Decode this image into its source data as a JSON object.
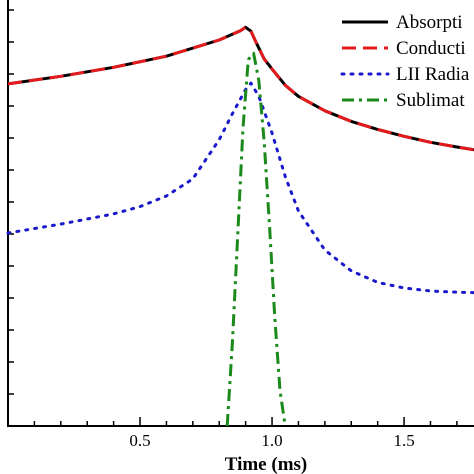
{
  "chart_data": {
    "type": "line",
    "title": "",
    "xlabel": "Time (ms)",
    "ylabel": "",
    "xlim": [
      0.0,
      1.78
    ],
    "ylim": [
      0,
      100
    ],
    "x_ticks": [
      0.5,
      1.0,
      1.5
    ],
    "x_tick_labels": [
      "0.5",
      "1.0",
      "1.5"
    ],
    "grid": false,
    "legend_position": "top-right",
    "series": [
      {
        "name": "Absorpti",
        "color": "#000000",
        "dash": "solid",
        "x": [
          0.0,
          0.2,
          0.4,
          0.6,
          0.8,
          0.88,
          0.9,
          0.92,
          0.94,
          0.97,
          1.0,
          1.05,
          1.1,
          1.2,
          1.3,
          1.4,
          1.5,
          1.6,
          1.7,
          1.78
        ],
        "y": [
          80.3,
          82.1,
          84.2,
          86.8,
          90.6,
          92.8,
          93.6,
          92.7,
          90.0,
          86.2,
          83.8,
          80.0,
          77.4,
          74.0,
          71.5,
          69.6,
          68.0,
          66.6,
          65.5,
          64.7
        ]
      },
      {
        "name": "Conducti",
        "color": "#e41a1c",
        "dash": "dashed",
        "x": [
          0.0,
          0.2,
          0.4,
          0.6,
          0.8,
          0.88,
          0.9,
          0.92,
          0.94,
          0.97,
          1.0,
          1.05,
          1.1,
          1.2,
          1.3,
          1.4,
          1.5,
          1.6,
          1.7,
          1.78
        ],
        "y": [
          80.3,
          82.1,
          84.2,
          86.8,
          90.6,
          92.8,
          93.6,
          92.7,
          90.0,
          86.2,
          83.8,
          80.0,
          77.4,
          74.0,
          71.5,
          69.6,
          68.0,
          66.6,
          65.5,
          64.7
        ]
      },
      {
        "name": "LII Radia",
        "color": "#1a1acc",
        "dash": "dotted",
        "x": [
          0.0,
          0.2,
          0.4,
          0.5,
          0.6,
          0.7,
          0.8,
          0.85,
          0.9,
          0.92,
          0.95,
          1.0,
          1.05,
          1.1,
          1.2,
          1.3,
          1.4,
          1.5,
          1.6,
          1.7,
          1.78
        ],
        "y": [
          45.3,
          47.4,
          49.8,
          51.5,
          54.0,
          58.0,
          67.2,
          73.3,
          79.0,
          80.5,
          77.4,
          68.8,
          58.6,
          50.5,
          41.3,
          36.4,
          33.7,
          32.4,
          31.7,
          31.4,
          31.3
        ]
      },
      {
        "name": "Sublimat",
        "color": "#1b8a1b",
        "dash": "dashdot",
        "x": [
          0.83,
          0.85,
          0.87,
          0.89,
          0.91,
          0.93,
          0.95,
          0.97,
          0.99,
          1.01,
          1.03,
          1.05
        ],
        "y": [
          0,
          19.6,
          44.7,
          70.0,
          86.0,
          87.5,
          81.1,
          66.9,
          47.5,
          25.8,
          8.3,
          0
        ]
      }
    ]
  }
}
